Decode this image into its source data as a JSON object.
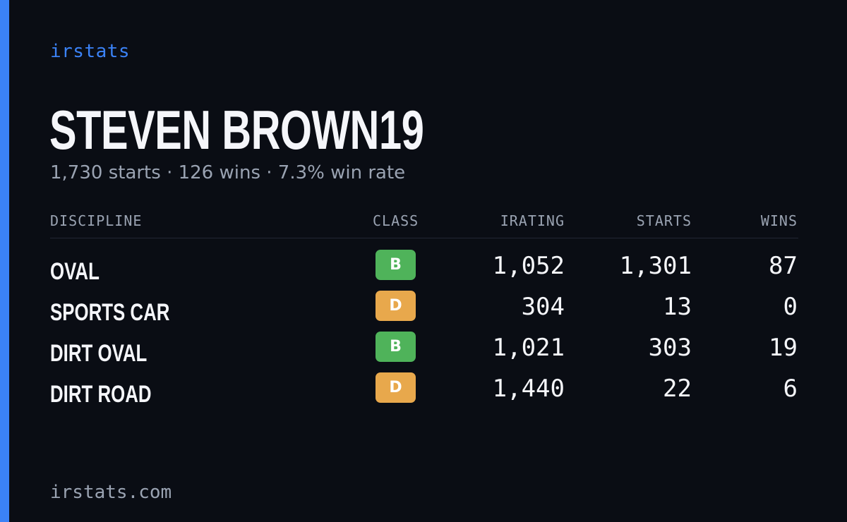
{
  "brand": "irstats",
  "driver": {
    "name": "STEVEN BROWN19",
    "summary": "1,730 starts · 126 wins · 7.3% win rate"
  },
  "table": {
    "headers": {
      "discipline": "DISCIPLINE",
      "class": "CLASS",
      "irating": "IRATING",
      "starts": "STARTS",
      "wins": "WINS"
    },
    "rows": [
      {
        "discipline": "OVAL",
        "class": "B",
        "irating": "1,052",
        "starts": "1,301",
        "wins": "87"
      },
      {
        "discipline": "SPORTS CAR",
        "class": "D",
        "irating": "304",
        "starts": "13",
        "wins": "0"
      },
      {
        "discipline": "DIRT OVAL",
        "class": "B",
        "irating": "1,021",
        "starts": "303",
        "wins": "19"
      },
      {
        "discipline": "DIRT ROAD",
        "class": "D",
        "irating": "1,440",
        "starts": "22",
        "wins": "6"
      }
    ]
  },
  "footer": "irstats.com",
  "colors": {
    "background": "#0a0d14",
    "accent": "#3b82f6",
    "class_b": "#4fb35a",
    "class_d": "#e8a84c",
    "muted_text": "#9aa3b2"
  }
}
